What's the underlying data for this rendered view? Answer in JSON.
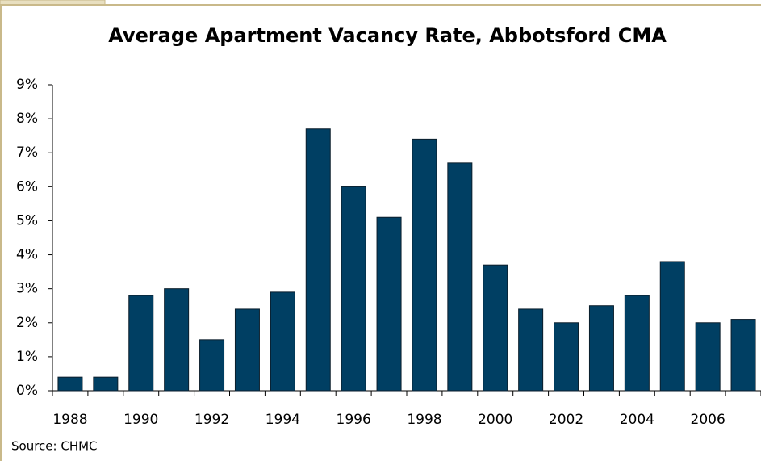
{
  "chart_data": {
    "type": "bar",
    "title": "Average Apartment Vacancy Rate, Abbotsford CMA",
    "source": "Source: CHMC",
    "categories": [
      "1988",
      null,
      "1990",
      null,
      "1992",
      null,
      "1994",
      null,
      "1996",
      null,
      "1998",
      null,
      "2000",
      null,
      "2002",
      null,
      "2004",
      null,
      "2006",
      null
    ],
    "values": [
      0.4,
      0.4,
      2.8,
      3.0,
      1.5,
      2.4,
      2.9,
      7.7,
      6.0,
      5.1,
      7.4,
      6.7,
      3.7,
      2.4,
      2.0,
      2.5,
      2.8,
      3.8,
      2.0,
      2.1
    ],
    "color": "#003f63",
    "ylim": [
      0,
      9
    ],
    "yticks": [
      {
        "value": 0,
        "label": "0%"
      },
      {
        "value": 1,
        "label": "1%"
      },
      {
        "value": 2,
        "label": "2%"
      },
      {
        "value": 3,
        "label": "3%"
      },
      {
        "value": 4,
        "label": "4%"
      },
      {
        "value": 5,
        "label": "5%"
      },
      {
        "value": 6,
        "label": "6%"
      },
      {
        "value": 7,
        "label": "7%"
      },
      {
        "value": 8,
        "label": "8%"
      },
      {
        "value": 9,
        "label": "9%"
      }
    ],
    "grid": false
  }
}
